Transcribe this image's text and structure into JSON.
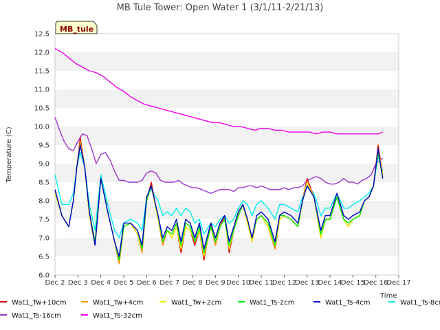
{
  "chart_data": {
    "type": "line",
    "title": "MB Tule Tower: Open Water 1 (3/1/11-2/21/13)",
    "xlabel": "Time",
    "ylabel": "Temperature (C)",
    "badge": "MB_tule",
    "xlim": [
      2,
      17
    ],
    "ylim": [
      6.0,
      12.5
    ],
    "x_ticks": [
      2,
      3,
      4,
      5,
      6,
      7,
      8,
      9,
      10,
      11,
      12,
      13,
      14,
      15,
      16,
      17
    ],
    "x_tick_labels": [
      "Dec 2",
      "Dec 3",
      "Dec 4",
      "Dec 5",
      "Dec 6",
      "Dec 7",
      "Dec 8",
      "Dec 9",
      "Dec 10",
      "Dec 11",
      "Dec 12",
      "Dec 13",
      "Dec 14",
      "Dec 15",
      "Dec 16",
      "Dec 17"
    ],
    "y_ticks": [
      6.0,
      6.5,
      7.0,
      7.5,
      8.0,
      8.5,
      9.0,
      9.5,
      10.0,
      10.5,
      11.0,
      11.5,
      12.0,
      12.5
    ],
    "y_tick_labels": [
      "6.0",
      "6.5",
      "7.0",
      "7.5",
      "8.0",
      "8.5",
      "9.0",
      "9.5",
      "10.0",
      "10.5",
      "11.0",
      "11.5",
      "12.0",
      "12.5"
    ],
    "legend_position": "bottom",
    "series": [
      {
        "name": "Wat1_Tw+10cm",
        "color": "#dd0000",
        "x": [
          2.0,
          2.3,
          2.6,
          2.8,
          2.95,
          3.1,
          3.3,
          3.5,
          3.75,
          4.0,
          4.3,
          4.6,
          4.8,
          5.0,
          5.3,
          5.6,
          5.8,
          6.0,
          6.2,
          6.5,
          6.7,
          6.9,
          7.1,
          7.3,
          7.5,
          7.7,
          7.9,
          8.1,
          8.3,
          8.5,
          8.8,
          9.0,
          9.2,
          9.4,
          9.6,
          9.8,
          10.0,
          10.2,
          10.4,
          10.6,
          10.8,
          11.0,
          11.3,
          11.6,
          11.8,
          12.0,
          12.3,
          12.6,
          12.8,
          13.0,
          13.3,
          13.6,
          13.8,
          14.0,
          14.3,
          14.6,
          14.8,
          15.0,
          15.3,
          15.5,
          15.7,
          15.9,
          16.1,
          16.3
        ],
        "values": [
          8.3,
          7.6,
          7.3,
          8.0,
          8.9,
          9.7,
          8.9,
          7.6,
          6.8,
          8.6,
          7.7,
          6.9,
          6.3,
          7.3,
          7.4,
          7.1,
          6.6,
          8.0,
          8.5,
          7.5,
          6.8,
          7.2,
          7.0,
          7.3,
          6.6,
          7.3,
          7.2,
          6.8,
          7.2,
          6.4,
          7.4,
          6.8,
          7.3,
          7.6,
          6.6,
          7.2,
          7.6,
          7.9,
          7.4,
          6.9,
          7.5,
          7.6,
          7.3,
          6.7,
          7.5,
          7.6,
          7.5,
          7.3,
          8.0,
          8.6,
          8.1,
          7.0,
          7.5,
          7.5,
          8.1,
          7.5,
          7.3,
          7.5,
          7.6,
          8.0,
          8.1,
          8.4,
          9.5,
          8.7
        ]
      },
      {
        "name": "Wat1_Tw+4cm",
        "color": "#ff9900",
        "x": [
          2.0,
          2.3,
          2.6,
          2.8,
          2.95,
          3.1,
          3.3,
          3.5,
          3.75,
          4.0,
          4.3,
          4.6,
          4.8,
          5.0,
          5.3,
          5.6,
          5.8,
          6.0,
          6.2,
          6.5,
          6.7,
          6.9,
          7.1,
          7.3,
          7.5,
          7.7,
          7.9,
          8.1,
          8.3,
          8.5,
          8.8,
          9.0,
          9.2,
          9.4,
          9.6,
          9.8,
          10.0,
          10.2,
          10.4,
          10.6,
          10.8,
          11.0,
          11.3,
          11.6,
          11.8,
          12.0,
          12.3,
          12.6,
          12.8,
          13.0,
          13.3,
          13.6,
          13.8,
          14.0,
          14.3,
          14.6,
          14.8,
          15.0,
          15.3,
          15.5,
          15.7,
          15.9,
          16.1,
          16.3
        ],
        "values": [
          8.2,
          7.6,
          7.3,
          8.0,
          8.9,
          9.6,
          8.9,
          7.6,
          6.8,
          8.6,
          7.7,
          6.9,
          6.3,
          7.3,
          7.4,
          7.1,
          6.6,
          8.0,
          8.4,
          7.5,
          6.8,
          7.2,
          7.0,
          7.3,
          6.7,
          7.3,
          7.2,
          6.9,
          7.2,
          6.5,
          7.3,
          6.8,
          7.3,
          7.5,
          6.7,
          7.2,
          7.6,
          7.9,
          7.4,
          6.9,
          7.5,
          7.6,
          7.3,
          6.7,
          7.5,
          7.6,
          7.5,
          7.3,
          8.0,
          8.5,
          8.1,
          7.0,
          7.5,
          7.5,
          8.1,
          7.5,
          7.3,
          7.5,
          7.6,
          8.0,
          8.1,
          8.4,
          9.4,
          8.7
        ]
      },
      {
        "name": "Wat1_Tw+2cm",
        "color": "#eeee00",
        "x": [
          2.0,
          2.3,
          2.6,
          2.8,
          2.95,
          3.1,
          3.3,
          3.5,
          3.75,
          4.0,
          4.3,
          4.6,
          4.8,
          5.0,
          5.3,
          5.6,
          5.8,
          6.0,
          6.2,
          6.5,
          6.7,
          6.9,
          7.1,
          7.3,
          7.5,
          7.7,
          7.9,
          8.1,
          8.3,
          8.5,
          8.8,
          9.0,
          9.2,
          9.4,
          9.6,
          9.8,
          10.0,
          10.2,
          10.4,
          10.6,
          10.8,
          11.0,
          11.3,
          11.6,
          11.8,
          12.0,
          12.3,
          12.6,
          12.8,
          13.0,
          13.3,
          13.6,
          13.8,
          14.0,
          14.3,
          14.6,
          14.8,
          15.0,
          15.3,
          15.5,
          15.7,
          15.9,
          16.1,
          16.3
        ],
        "values": [
          8.2,
          7.6,
          7.3,
          8.0,
          8.9,
          9.5,
          8.9,
          7.6,
          6.9,
          8.6,
          7.7,
          6.9,
          6.4,
          7.3,
          7.4,
          7.1,
          6.7,
          8.0,
          8.4,
          7.5,
          6.9,
          7.2,
          7.0,
          7.3,
          6.7,
          7.3,
          7.2,
          6.9,
          7.2,
          6.5,
          7.3,
          6.9,
          7.3,
          7.5,
          6.7,
          7.2,
          7.6,
          7.9,
          7.4,
          6.9,
          7.5,
          7.6,
          7.3,
          6.8,
          7.5,
          7.6,
          7.5,
          7.3,
          8.0,
          8.5,
          8.1,
          7.0,
          7.5,
          7.5,
          8.1,
          7.5,
          7.3,
          7.5,
          7.6,
          8.0,
          8.1,
          8.4,
          9.4,
          8.7
        ]
      },
      {
        "name": "Wat1_Ts-2cm",
        "color": "#00ee00",
        "x": [
          2.0,
          2.3,
          2.6,
          2.8,
          2.95,
          3.1,
          3.3,
          3.5,
          3.75,
          4.0,
          4.3,
          4.6,
          4.8,
          5.0,
          5.3,
          5.6,
          5.8,
          6.0,
          6.2,
          6.5,
          6.7,
          6.9,
          7.1,
          7.3,
          7.5,
          7.7,
          7.9,
          8.1,
          8.3,
          8.5,
          8.8,
          9.0,
          9.2,
          9.4,
          9.6,
          9.8,
          10.0,
          10.2,
          10.4,
          10.6,
          10.8,
          11.0,
          11.3,
          11.6,
          11.8,
          12.0,
          12.3,
          12.6,
          12.8,
          13.0,
          13.3,
          13.6,
          13.8,
          14.0,
          14.3,
          14.6,
          14.8,
          15.0,
          15.3,
          15.5,
          15.7,
          15.9,
          16.1,
          16.3
        ],
        "values": [
          8.3,
          7.6,
          7.3,
          8.0,
          8.9,
          9.5,
          8.9,
          7.7,
          6.9,
          8.6,
          7.7,
          6.9,
          6.4,
          7.3,
          7.4,
          7.2,
          6.7,
          8.0,
          8.4,
          7.6,
          6.9,
          7.2,
          7.1,
          7.4,
          6.8,
          7.4,
          7.3,
          6.9,
          7.3,
          6.6,
          7.3,
          6.9,
          7.3,
          7.5,
          6.8,
          7.2,
          7.6,
          7.9,
          7.5,
          7.0,
          7.5,
          7.6,
          7.4,
          6.8,
          7.6,
          7.6,
          7.5,
          7.3,
          8.0,
          8.4,
          8.1,
          7.1,
          7.5,
          7.5,
          8.1,
          7.5,
          7.4,
          7.5,
          7.6,
          8.0,
          8.1,
          8.4,
          9.3,
          8.6
        ]
      },
      {
        "name": "Wat1_Ts-4cm",
        "color": "#0000cc",
        "x": [
          2.0,
          2.3,
          2.6,
          2.8,
          2.95,
          3.1,
          3.3,
          3.5,
          3.75,
          4.0,
          4.3,
          4.6,
          4.8,
          5.0,
          5.3,
          5.6,
          5.8,
          6.0,
          6.2,
          6.5,
          6.7,
          6.9,
          7.1,
          7.3,
          7.5,
          7.7,
          7.9,
          8.1,
          8.3,
          8.5,
          8.8,
          9.0,
          9.2,
          9.4,
          9.6,
          9.8,
          10.0,
          10.2,
          10.4,
          10.6,
          10.8,
          11.0,
          11.3,
          11.6,
          11.8,
          12.0,
          12.3,
          12.6,
          12.8,
          13.0,
          13.3,
          13.6,
          13.8,
          14.0,
          14.3,
          14.6,
          14.8,
          15.0,
          15.3,
          15.5,
          15.7,
          15.9,
          16.1,
          16.3
        ],
        "values": [
          8.3,
          7.6,
          7.3,
          8.0,
          8.9,
          9.5,
          8.9,
          7.7,
          6.8,
          8.6,
          7.7,
          6.9,
          6.5,
          7.4,
          7.4,
          7.2,
          6.8,
          8.1,
          8.4,
          7.6,
          7.0,
          7.3,
          7.2,
          7.5,
          6.9,
          7.5,
          7.4,
          7.0,
          7.4,
          6.7,
          7.4,
          7.0,
          7.4,
          7.6,
          6.9,
          7.3,
          7.7,
          7.9,
          7.5,
          7.0,
          7.6,
          7.7,
          7.5,
          6.9,
          7.6,
          7.7,
          7.6,
          7.4,
          8.0,
          8.4,
          8.1,
          7.2,
          7.6,
          7.6,
          8.2,
          7.6,
          7.5,
          7.6,
          7.7,
          8.0,
          8.1,
          8.4,
          9.4,
          8.6
        ]
      },
      {
        "name": "Wat1_Ts-8cm",
        "color": "#00eeee",
        "x": [
          2.0,
          2.3,
          2.6,
          2.8,
          2.95,
          3.1,
          3.3,
          3.5,
          3.75,
          4.0,
          4.3,
          4.6,
          4.8,
          5.0,
          5.3,
          5.6,
          5.8,
          6.0,
          6.2,
          6.5,
          6.7,
          6.9,
          7.1,
          7.3,
          7.5,
          7.7,
          7.9,
          8.1,
          8.3,
          8.5,
          8.8,
          9.0,
          9.2,
          9.4,
          9.6,
          9.8,
          10.0,
          10.2,
          10.4,
          10.6,
          10.8,
          11.0,
          11.3,
          11.6,
          11.8,
          12.0,
          12.3,
          12.6,
          12.8,
          13.0,
          13.3,
          13.6,
          13.8,
          14.0,
          14.3,
          14.6,
          14.8,
          15.0,
          15.3,
          15.5,
          15.7,
          15.9,
          16.1,
          16.3
        ],
        "values": [
          8.7,
          7.9,
          7.9,
          8.2,
          8.9,
          9.3,
          8.9,
          7.9,
          7.2,
          8.7,
          7.9,
          7.2,
          7.0,
          7.4,
          7.5,
          7.4,
          7.2,
          8.1,
          8.3,
          8.0,
          7.6,
          7.7,
          7.6,
          7.8,
          7.6,
          7.8,
          7.7,
          7.4,
          7.5,
          7.1,
          7.4,
          7.3,
          7.5,
          7.6,
          7.4,
          7.5,
          7.8,
          8.0,
          7.9,
          7.6,
          7.9,
          8.0,
          7.8,
          7.5,
          7.9,
          7.9,
          7.8,
          7.7,
          8.1,
          8.4,
          8.2,
          7.6,
          7.8,
          7.8,
          8.2,
          7.8,
          7.8,
          7.9,
          8.0,
          8.1,
          8.2,
          8.4,
          9.2,
          8.8
        ]
      },
      {
        "name": "Wat1_Ts-16cm",
        "color": "#9933cc",
        "x": [
          2.0,
          2.2,
          2.4,
          2.6,
          2.8,
          3.0,
          3.2,
          3.4,
          3.6,
          3.8,
          4.0,
          4.2,
          4.4,
          4.6,
          4.8,
          5.0,
          5.2,
          5.4,
          5.6,
          5.8,
          6.0,
          6.2,
          6.4,
          6.6,
          6.8,
          7.0,
          7.2,
          7.4,
          7.6,
          7.8,
          8.0,
          8.2,
          8.4,
          8.6,
          8.8,
          9.0,
          9.2,
          9.4,
          9.6,
          9.8,
          10.0,
          10.2,
          10.4,
          10.6,
          10.8,
          11.0,
          11.2,
          11.4,
          11.6,
          11.8,
          12.0,
          12.2,
          12.4,
          12.6,
          12.8,
          13.0,
          13.2,
          13.4,
          13.6,
          13.8,
          14.0,
          14.2,
          14.4,
          14.6,
          14.8,
          15.0,
          15.2,
          15.4,
          15.6,
          15.8,
          16.0,
          16.2,
          16.3
        ],
        "values": [
          10.25,
          9.9,
          9.6,
          9.4,
          9.35,
          9.6,
          9.8,
          9.75,
          9.4,
          9.0,
          9.25,
          9.3,
          9.1,
          8.8,
          8.55,
          8.55,
          8.5,
          8.5,
          8.5,
          8.55,
          8.75,
          8.8,
          8.75,
          8.55,
          8.5,
          8.5,
          8.5,
          8.55,
          8.45,
          8.4,
          8.35,
          8.35,
          8.3,
          8.25,
          8.2,
          8.25,
          8.3,
          8.3,
          8.3,
          8.25,
          8.35,
          8.35,
          8.4,
          8.4,
          8.35,
          8.4,
          8.35,
          8.3,
          8.3,
          8.3,
          8.35,
          8.3,
          8.35,
          8.35,
          8.4,
          8.55,
          8.6,
          8.65,
          8.6,
          8.5,
          8.45,
          8.45,
          8.5,
          8.6,
          8.5,
          8.5,
          8.45,
          8.55,
          8.6,
          8.7,
          9.0,
          9.1,
          9.15
        ]
      },
      {
        "name": "Wat1_Ts-32cm",
        "color": "#ee00ee",
        "x": [
          2.0,
          2.3,
          2.6,
          2.9,
          3.2,
          3.5,
          3.8,
          4.1,
          4.4,
          4.7,
          5.0,
          5.3,
          5.6,
          5.9,
          6.2,
          6.5,
          6.8,
          7.1,
          7.4,
          7.7,
          8.0,
          8.3,
          8.6,
          8.9,
          9.2,
          9.5,
          9.8,
          10.1,
          10.4,
          10.7,
          11.0,
          11.3,
          11.6,
          11.9,
          12.2,
          12.5,
          12.8,
          13.1,
          13.4,
          13.7,
          14.0,
          14.3,
          14.6,
          14.9,
          15.2,
          15.5,
          15.8,
          16.1,
          16.3
        ],
        "values": [
          12.1,
          12.0,
          11.85,
          11.7,
          11.6,
          11.5,
          11.45,
          11.35,
          11.2,
          11.05,
          10.95,
          10.8,
          10.7,
          10.6,
          10.55,
          10.5,
          10.45,
          10.4,
          10.35,
          10.3,
          10.25,
          10.2,
          10.15,
          10.1,
          10.1,
          10.05,
          10.0,
          10.0,
          9.95,
          9.9,
          9.95,
          9.95,
          9.9,
          9.9,
          9.85,
          9.85,
          9.85,
          9.85,
          9.8,
          9.85,
          9.85,
          9.8,
          9.8,
          9.8,
          9.8,
          9.8,
          9.8,
          9.8,
          9.85
        ]
      }
    ]
  }
}
